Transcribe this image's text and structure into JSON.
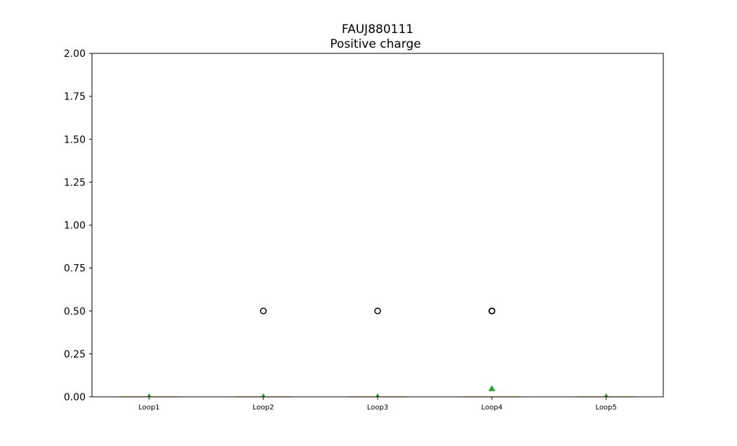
{
  "chart_data": {
    "type": "box",
    "title": "FAUJ880111",
    "subtitle": "Positive charge",
    "xlabel": "",
    "ylabel": "",
    "ylim": [
      0,
      2.0
    ],
    "yticks": [
      "0.00",
      "0.25",
      "0.50",
      "0.75",
      "1.00",
      "1.25",
      "1.50",
      "1.75",
      "2.00"
    ],
    "categories": [
      "Loop1",
      "Loop2",
      "Loop3",
      "Loop4",
      "Loop5"
    ],
    "boxes": [
      {
        "category": "Loop1",
        "q1": 0,
        "median": 0,
        "q3": 0,
        "whisker_low": 0,
        "whisker_high": 0,
        "mean": 0.0,
        "outliers": []
      },
      {
        "category": "Loop2",
        "q1": 0,
        "median": 0,
        "q3": 0,
        "whisker_low": 0,
        "whisker_high": 0,
        "mean": 0.0,
        "outliers": [
          0.5
        ]
      },
      {
        "category": "Loop3",
        "q1": 0,
        "median": 0,
        "q3": 0,
        "whisker_low": 0,
        "whisker_high": 0,
        "mean": 0.0,
        "outliers": [
          0.5
        ]
      },
      {
        "category": "Loop4",
        "q1": 0,
        "median": 0,
        "q3": 0,
        "whisker_low": 0,
        "whisker_high": 0,
        "mean": 0.033,
        "outliers": [
          0.5,
          0.5,
          0.5
        ]
      },
      {
        "category": "Loop5",
        "q1": 0,
        "median": 0,
        "q3": 0,
        "whisker_low": 0,
        "whisker_high": 0,
        "mean": 0.0,
        "outliers": []
      }
    ],
    "grid": false,
    "colors": {
      "median": "#ff7f0e",
      "mean": "#2ca02c",
      "box": "#000000",
      "outlier": "#000000"
    }
  }
}
